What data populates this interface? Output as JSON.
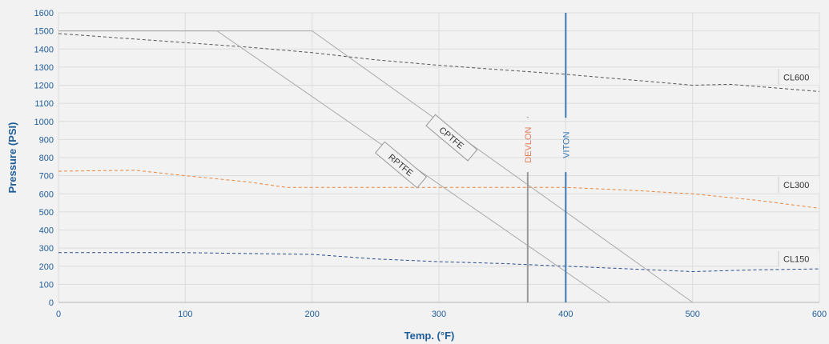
{
  "chart_data": {
    "type": "line",
    "title": "",
    "xlabel": "Temp. (°F)",
    "ylabel": "Pressure (PSI)",
    "xlim": [
      0,
      600
    ],
    "ylim": [
      0,
      1600
    ],
    "xticks": [
      0,
      100,
      200,
      300,
      400,
      500,
      600
    ],
    "yticks": [
      0,
      100,
      200,
      300,
      400,
      500,
      600,
      700,
      800,
      900,
      1000,
      1100,
      1200,
      1300,
      1400,
      1500,
      1600
    ],
    "grid": true,
    "series": [
      {
        "name": "CL600",
        "style": "dashed",
        "color": "#555555",
        "x": [
          0,
          50,
          100,
          150,
          200,
          250,
          300,
          350,
          400,
          450,
          500,
          530,
          600
        ],
        "y": [
          1485,
          1460,
          1435,
          1410,
          1380,
          1340,
          1310,
          1285,
          1260,
          1230,
          1200,
          1205,
          1165
        ]
      },
      {
        "name": "CL300",
        "style": "dashed",
        "color": "#e8873c",
        "x": [
          0,
          60,
          100,
          150,
          180,
          250,
          300,
          350,
          400,
          450,
          500,
          550,
          600
        ],
        "y": [
          725,
          730,
          700,
          665,
          635,
          635,
          635,
          635,
          635,
          620,
          600,
          565,
          520
        ]
      },
      {
        "name": "CL150",
        "style": "dashed",
        "color": "#2a4e8e",
        "x": [
          0,
          50,
          100,
          150,
          200,
          250,
          300,
          350,
          400,
          450,
          500,
          550,
          600
        ],
        "y": [
          275,
          275,
          275,
          270,
          265,
          240,
          225,
          215,
          200,
          185,
          170,
          180,
          185
        ]
      },
      {
        "name": "RPTFE",
        "style": "solid",
        "color": "#aaaaaa",
        "x": [
          0,
          125,
          435
        ],
        "y": [
          1500,
          1500,
          0
        ]
      },
      {
        "name": "CPTFE",
        "style": "solid",
        "color": "#aaaaaa",
        "x": [
          0,
          200,
          500
        ],
        "y": [
          1500,
          1500,
          0
        ]
      }
    ],
    "vertical_markers": [
      {
        "name": "DEVLON",
        "x": 370,
        "y_top": 1025,
        "color": "#999999",
        "label_color": "#e07b5a"
      },
      {
        "name": "VITON",
        "x": 400,
        "y_top": 1600,
        "color": "#3a78b5",
        "label_color": "#3a78b5"
      }
    ],
    "annotations": [
      {
        "text": "CL600",
        "x": 600,
        "y": 1245
      },
      {
        "text": "CL300",
        "x": 600,
        "y": 650
      },
      {
        "text": "CL150",
        "x": 600,
        "y": 240
      },
      {
        "text": "CPTFE",
        "x": 310,
        "y": 910,
        "rotate": 40
      },
      {
        "text": "RPTFE",
        "x": 270,
        "y": 760,
        "rotate": 40
      }
    ]
  }
}
